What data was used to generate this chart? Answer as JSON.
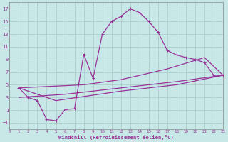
{
  "xlabel": "Windchill (Refroidissement éolien,°C)",
  "bg_color": "#c8e8e8",
  "line_color": "#993399",
  "grid_color": "#a8c8c8",
  "xlim": [
    0,
    23
  ],
  "ylim": [
    -2,
    18
  ],
  "xticks": [
    0,
    1,
    2,
    3,
    4,
    5,
    6,
    7,
    8,
    9,
    10,
    11,
    12,
    13,
    14,
    15,
    16,
    17,
    18,
    19,
    20,
    21,
    22,
    23
  ],
  "yticks": [
    -1,
    1,
    3,
    5,
    7,
    9,
    11,
    13,
    15,
    17
  ],
  "curve_main_x": [
    1,
    2,
    3,
    4,
    5,
    6,
    7,
    8,
    9,
    10,
    11,
    12,
    13,
    14,
    15,
    16,
    17,
    18,
    19,
    20,
    21,
    22,
    23
  ],
  "curve_main_y": [
    4.5,
    3.0,
    2.5,
    -0.5,
    -0.7,
    1.1,
    1.2,
    9.8,
    6.0,
    13.0,
    15.0,
    15.8,
    17.0,
    16.4,
    15.0,
    13.3,
    10.4,
    9.7,
    9.3,
    9.0,
    8.5,
    6.5,
    6.5
  ],
  "line_upper_x": [
    1,
    8,
    12,
    17,
    21,
    23
  ],
  "line_upper_y": [
    4.5,
    5.0,
    5.8,
    7.5,
    9.3,
    6.5
  ],
  "line_lower_x": [
    1,
    6,
    12,
    18,
    23
  ],
  "line_lower_y": [
    3.0,
    3.5,
    4.5,
    5.5,
    6.5
  ],
  "line_bottom_x": [
    1,
    5,
    12,
    18,
    23
  ],
  "line_bottom_y": [
    4.5,
    2.5,
    4.0,
    5.0,
    6.5
  ]
}
